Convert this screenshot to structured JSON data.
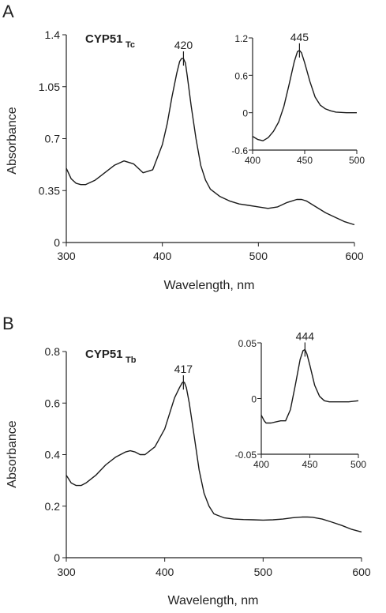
{
  "chart_data": [
    {
      "type": "line",
      "panel": "A",
      "label_main": "CYP51",
      "label_sub": "Tc",
      "xlabel": "Wavelength, nm",
      "ylabel": "Absorbance",
      "xlim": [
        300,
        600
      ],
      "ylim": [
        0,
        1.4
      ],
      "xticks": [
        "300",
        "400",
        "500",
        "600"
      ],
      "yticks": [
        "0",
        "0.35",
        "0.7",
        "1.05",
        "1.4"
      ],
      "peak_label": "420",
      "peak_x": 422,
      "peak_y": 1.24,
      "series": [
        {
          "x": [
            300,
            305,
            310,
            315,
            320,
            330,
            340,
            350,
            360,
            370,
            380,
            390,
            400,
            405,
            410,
            415,
            418,
            420,
            422,
            424,
            426,
            430,
            435,
            440,
            445,
            450,
            460,
            470,
            480,
            490,
            500,
            510,
            520,
            530,
            540,
            545,
            550,
            560,
            570,
            580,
            590,
            600
          ],
          "y": [
            0.5,
            0.43,
            0.4,
            0.39,
            0.39,
            0.42,
            0.47,
            0.52,
            0.55,
            0.53,
            0.47,
            0.49,
            0.66,
            0.8,
            0.98,
            1.14,
            1.22,
            1.24,
            1.24,
            1.21,
            1.12,
            0.92,
            0.7,
            0.52,
            0.42,
            0.36,
            0.31,
            0.28,
            0.26,
            0.25,
            0.24,
            0.23,
            0.24,
            0.27,
            0.29,
            0.29,
            0.28,
            0.24,
            0.2,
            0.17,
            0.14,
            0.12
          ]
        }
      ],
      "inset": {
        "xlim": [
          400,
          500
        ],
        "ylim": [
          -0.6,
          1.2
        ],
        "xticks": [
          "400",
          "450",
          "500"
        ],
        "yticks": [
          "-0.6",
          "0",
          "0.6",
          "1.2"
        ],
        "peak_label": "445",
        "peak_x": 445,
        "peak_y": 1.0,
        "series": [
          {
            "x": [
              400,
              405,
              410,
              415,
              420,
              425,
              430,
              435,
              440,
              443,
              445,
              447,
              450,
              455,
              460,
              465,
              470,
              475,
              480,
              490,
              500
            ],
            "y": [
              -0.38,
              -0.43,
              -0.45,
              -0.4,
              -0.3,
              -0.15,
              0.1,
              0.45,
              0.82,
              0.98,
              1.0,
              0.96,
              0.8,
              0.5,
              0.25,
              0.12,
              0.06,
              0.03,
              0.01,
              0.0,
              0.0
            ]
          }
        ]
      }
    },
    {
      "type": "line",
      "panel": "B",
      "label_main": "CYP51",
      "label_sub": "Tb",
      "xlabel": "Wavelength, nm",
      "ylabel": "Absorbance",
      "xlim": [
        300,
        600
      ],
      "ylim": [
        0,
        0.8
      ],
      "xticks": [
        "300",
        "400",
        "500",
        "600"
      ],
      "yticks": [
        "0",
        "0.2",
        "0.4",
        "0.6",
        "0.8"
      ],
      "peak_label": "417",
      "peak_x": 419,
      "peak_y": 0.68,
      "series": [
        {
          "x": [
            300,
            305,
            310,
            315,
            320,
            330,
            340,
            350,
            360,
            365,
            370,
            375,
            380,
            390,
            400,
            405,
            410,
            415,
            418,
            420,
            422,
            425,
            430,
            435,
            440,
            445,
            450,
            460,
            470,
            480,
            490,
            500,
            510,
            520,
            530,
            540,
            545,
            550,
            560,
            570,
            580,
            590,
            600
          ],
          "y": [
            0.32,
            0.29,
            0.28,
            0.28,
            0.29,
            0.32,
            0.36,
            0.39,
            0.41,
            0.415,
            0.41,
            0.4,
            0.4,
            0.43,
            0.5,
            0.56,
            0.62,
            0.66,
            0.68,
            0.68,
            0.66,
            0.6,
            0.47,
            0.34,
            0.25,
            0.2,
            0.17,
            0.155,
            0.15,
            0.148,
            0.147,
            0.146,
            0.147,
            0.15,
            0.155,
            0.158,
            0.158,
            0.157,
            0.15,
            0.138,
            0.125,
            0.11,
            0.1
          ]
        }
      ],
      "inset": {
        "xlim": [
          400,
          500
        ],
        "ylim": [
          -0.05,
          0.05
        ],
        "xticks": [
          "400",
          "450",
          "500"
        ],
        "yticks": [
          "-0.05",
          "0",
          "0.05"
        ],
        "peak_label": "444",
        "peak_x": 445,
        "peak_y": 0.044,
        "series": [
          {
            "x": [
              400,
              403,
              405,
              410,
              415,
              420,
              425,
              430,
              435,
              440,
              443,
              445,
              447,
              450,
              455,
              460,
              465,
              470,
              475,
              480,
              490,
              500
            ],
            "y": [
              -0.015,
              -0.02,
              -0.022,
              -0.022,
              -0.021,
              -0.02,
              -0.02,
              -0.01,
              0.012,
              0.035,
              0.043,
              0.044,
              0.04,
              0.03,
              0.012,
              0.002,
              -0.002,
              -0.003,
              -0.003,
              -0.003,
              -0.003,
              -0.002
            ]
          }
        ]
      }
    }
  ]
}
